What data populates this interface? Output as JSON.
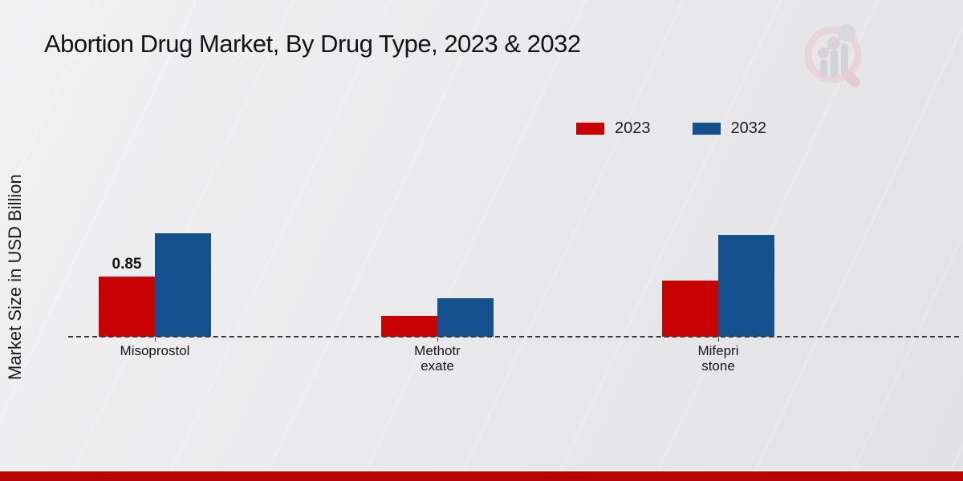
{
  "header": {
    "title": "Abortion Drug Market, By Drug Type, 2023 & 2032"
  },
  "branding": {
    "logo_icon": "magnifier-bar-chart-logo"
  },
  "chart_data": {
    "type": "bar",
    "title": "Abortion Drug Market, By Drug Type, 2023 & 2032",
    "xlabel": "",
    "ylabel": "Market Size in USD Billion",
    "categories": [
      "Misoprostol",
      "Methotrexate",
      "Mifepristone"
    ],
    "category_label_lines": [
      [
        "Misoprostol"
      ],
      [
        "Methotr",
        "exate"
      ],
      [
        "Mifepri",
        "stone"
      ]
    ],
    "series": [
      {
        "name": "2023",
        "color": "#c80202",
        "values": [
          0.85,
          0.3,
          0.8
        ],
        "labels": [
          "0.85",
          "",
          ""
        ]
      },
      {
        "name": "2032",
        "color": "#14508e",
        "values": [
          1.47,
          0.54,
          1.44
        ],
        "labels": [
          "",
          "",
          ""
        ]
      }
    ],
    "ylim": [
      0,
      1.6
    ],
    "grid": false,
    "legend_position": "top-right",
    "baseline_style": "dashed"
  }
}
